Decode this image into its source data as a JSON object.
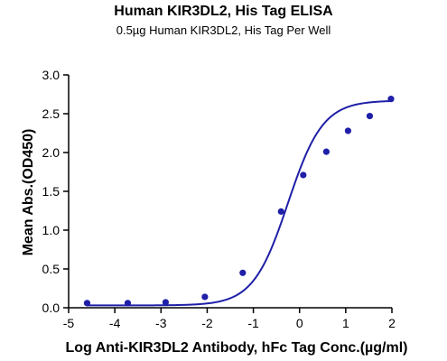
{
  "chart_data": {
    "type": "scatter",
    "title": "Human KIR3DL2, His Tag ELISA",
    "subtitle": "0.5µg Human KIR3DL2, His Tag Per Well",
    "xlabel": "Log Anti-KIR3DL2 Antibody, hFc Tag Conc.(µg/ml)",
    "ylabel": "Mean Abs.(OD450)",
    "xlim": [
      -5,
      2
    ],
    "ylim": [
      0,
      3.0
    ],
    "x_ticks": [
      "-5",
      "-4",
      "-3",
      "-2",
      "-1",
      "0",
      "1",
      "2"
    ],
    "y_ticks": [
      "0.0",
      "0.5",
      "1.0",
      "1.5",
      "2.0",
      "2.5",
      "3.0"
    ],
    "grid": false,
    "colors": {
      "series": "#1f1fa8"
    },
    "points": [
      {
        "x": -4.6,
        "y": 0.06
      },
      {
        "x": -3.72,
        "y": 0.06
      },
      {
        "x": -2.9,
        "y": 0.07
      },
      {
        "x": -2.05,
        "y": 0.14
      },
      {
        "x": -1.23,
        "y": 0.45
      },
      {
        "x": -0.4,
        "y": 1.24
      },
      {
        "x": 0.08,
        "y": 1.71
      },
      {
        "x": 0.58,
        "y": 2.01
      },
      {
        "x": 1.05,
        "y": 2.28
      },
      {
        "x": 1.52,
        "y": 2.47
      },
      {
        "x": 1.98,
        "y": 2.69
      }
    ],
    "fit_curve": {
      "model": "4PL",
      "bottom": 0.03,
      "top": 2.67,
      "log_ec50": -0.25,
      "hill": 1.15
    }
  }
}
